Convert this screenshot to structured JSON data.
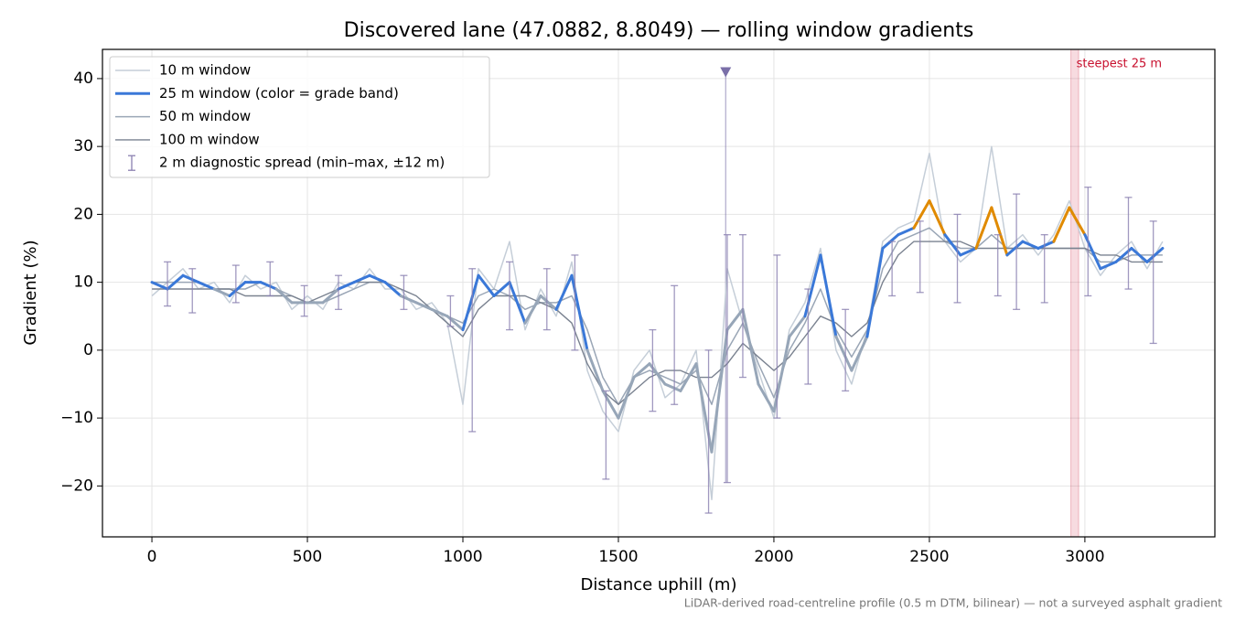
{
  "chart_data": {
    "type": "line",
    "title": "Discovered lane (47.0882, 8.8049) — rolling window gradients",
    "x_label": "Distance uphill (m)",
    "y_label": "Gradient (%)",
    "footnote": "LiDAR-derived road-centreline profile (0.5 m DTM, bilinear) — not a surveyed asphalt gradient",
    "xlim": [
      -159,
      3418
    ],
    "ylim": [
      -27.5,
      44.3
    ],
    "xticks": [
      0,
      500,
      1000,
      1500,
      2000,
      2500,
      3000
    ],
    "yticks": [
      {
        "value": -20,
        "label": "−20"
      },
      {
        "value": -10,
        "label": "−10"
      },
      0,
      10,
      20,
      30,
      40
    ],
    "grid": true,
    "legend": "upper left",
    "x": [
      0,
      50,
      100,
      150,
      200,
      250,
      300,
      350,
      400,
      450,
      500,
      550,
      600,
      650,
      700,
      750,
      800,
      850,
      900,
      950,
      1000,
      1050,
      1100,
      1150,
      1200,
      1250,
      1300,
      1350,
      1400,
      1450,
      1500,
      1550,
      1600,
      1650,
      1700,
      1750,
      1800,
      1850,
      1900,
      1950,
      2000,
      2050,
      2100,
      2150,
      2200,
      2250,
      2300,
      2350,
      2400,
      2450,
      2500,
      2550,
      2600,
      2650,
      2700,
      2750,
      2800,
      2850,
      2900,
      2950,
      3000,
      3050,
      3100,
      3150,
      3200,
      3250
    ],
    "series": [
      {
        "name": "10 m window",
        "color": "#c5ced8",
        "width": 1.5,
        "values": [
          8,
          10,
          12,
          9,
          10,
          7,
          11,
          9,
          10,
          6,
          8,
          6,
          10,
          9,
          12,
          9,
          9,
          6,
          7,
          4,
          -8,
          12,
          9,
          16,
          3,
          9,
          5,
          13,
          -3,
          -9,
          -12,
          -3,
          0,
          -7,
          -5,
          0,
          -22,
          12,
          4,
          -3,
          -10,
          3,
          7,
          15,
          0,
          -5,
          3,
          16,
          18,
          19,
          29,
          16,
          13,
          15,
          30,
          15,
          17,
          14,
          17,
          22,
          15,
          11,
          14,
          16,
          12,
          16
        ]
      },
      {
        "name": "25 m window (color = grade band)",
        "color": "#97a6b8",
        "width": 3,
        "grade_bands": [
          {
            "min": 10,
            "color": "#3a78d8"
          },
          {
            "min": 20,
            "color": "#e08a00"
          }
        ],
        "values": [
          10,
          9,
          11,
          10,
          9,
          8,
          10,
          10,
          9,
          7,
          7,
          7,
          9,
          10,
          11,
          10,
          8,
          7,
          6,
          5,
          3,
          11,
          8,
          10,
          4,
          8,
          6,
          11,
          0,
          -6,
          -10,
          -4,
          -2,
          -5,
          -6,
          -2,
          -15,
          3,
          6,
          -5,
          -9,
          2,
          5,
          14,
          2,
          -3,
          2,
          15,
          17,
          18,
          22,
          17,
          14,
          15,
          21,
          14,
          16,
          15,
          16,
          21,
          17,
          12,
          13,
          15,
          13,
          15
        ]
      },
      {
        "name": "50 m window",
        "color": "#9aa6b6",
        "width": 1.5,
        "values": [
          10,
          10,
          10,
          10,
          9,
          9,
          9,
          10,
          9,
          8,
          7,
          7,
          8,
          9,
          10,
          10,
          8,
          7,
          6,
          5,
          4,
          8,
          9,
          8,
          6,
          7,
          7,
          8,
          3,
          -4,
          -8,
          -4,
          -3,
          -4,
          -5,
          -3,
          -8,
          0,
          4,
          -2,
          -7,
          0,
          4,
          9,
          3,
          -1,
          3,
          12,
          16,
          17,
          18,
          16,
          15,
          15,
          17,
          15,
          15,
          15,
          15,
          15,
          15,
          13,
          13,
          14,
          14,
          14
        ]
      },
      {
        "name": "100 m window",
        "color": "#7a8290",
        "width": 1.4,
        "values": [
          9,
          9,
          9,
          9,
          9,
          9,
          8,
          8,
          8,
          8,
          7,
          8,
          9,
          10,
          10,
          10,
          9,
          8,
          6,
          4,
          2,
          6,
          8,
          8,
          8,
          7,
          6,
          4,
          -2,
          -6,
          -8,
          -6,
          -4,
          -3,
          -3,
          -4,
          -4,
          -2,
          1,
          -1,
          -3,
          -1,
          2,
          5,
          4,
          2,
          4,
          10,
          14,
          16,
          16,
          16,
          16,
          15,
          15,
          15,
          15,
          15,
          15,
          15,
          15,
          14,
          14,
          13,
          13,
          13
        ]
      }
    ],
    "spread": {
      "name": "2 m diagnostic spread (min–max, ±12 m)",
      "color": "#8a7fb0",
      "x": [
        50,
        130,
        270,
        380,
        490,
        600,
        810,
        960,
        1030,
        1150,
        1270,
        1360,
        1460,
        1610,
        1680,
        1790,
        1850,
        1900,
        2010,
        2110,
        2230,
        2380,
        2470,
        2590,
        2720,
        2780,
        2870,
        3010,
        3140,
        3220
      ],
      "low": [
        6.5,
        5.5,
        7,
        8,
        5,
        6,
        6,
        3.5,
        -12,
        3,
        3,
        0,
        -19,
        -9,
        -8,
        -24,
        -19.5,
        -4,
        -10,
        -5,
        -6,
        8,
        8.5,
        7,
        8,
        6,
        7,
        8,
        9,
        1
      ],
      "high": [
        13,
        12,
        12.5,
        13,
        9.5,
        11,
        11,
        8,
        12,
        13,
        12,
        14,
        -6,
        3,
        9.5,
        0,
        17,
        17,
        14,
        9,
        6,
        16,
        19,
        20,
        17,
        23,
        17,
        24,
        22.5,
        19
      ]
    },
    "marker": {
      "x": 1845,
      "y": 41,
      "color": "#7a6fa8"
    },
    "steepest": {
      "label": "steepest 25 m",
      "span": [
        2955,
        2980
      ],
      "color": "#c8102e"
    }
  }
}
